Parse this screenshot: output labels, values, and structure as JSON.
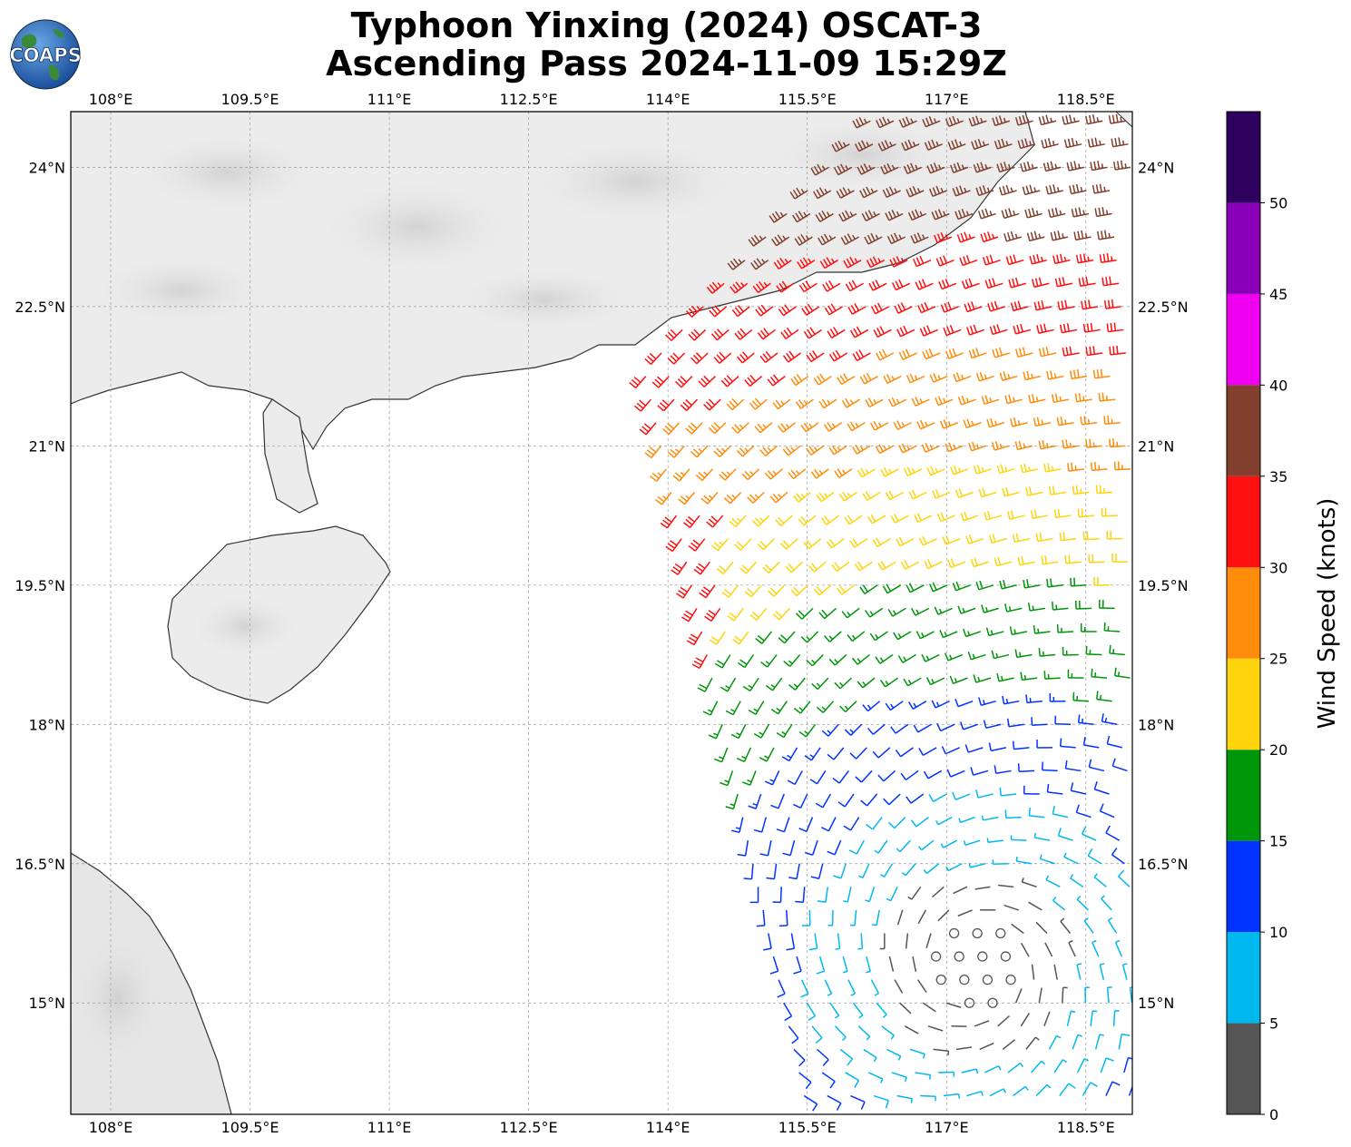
{
  "title": {
    "line1": "Typhoon Yinxing (2024) OSCAT-3",
    "line2": "Ascending Pass 2024-11-09 15:29Z"
  },
  "logo": {
    "text": "COAPS",
    "icon": "globe-logo"
  },
  "map": {
    "lon_ticks": [
      "108°E",
      "109.5°E",
      "111°E",
      "112.5°E",
      "114°E",
      "115.5°E",
      "117°E",
      "118.5°E"
    ],
    "lon_values": [
      108,
      109.5,
      111,
      112.5,
      114,
      115.5,
      117,
      118.5
    ],
    "lat_ticks": [
      "24°N",
      "22.5°N",
      "21°N",
      "19.5°N",
      "18°N",
      "16.5°N",
      "15°N"
    ],
    "lat_values": [
      24,
      22.5,
      21,
      19.5,
      18,
      16.5,
      15
    ],
    "lon_range": [
      107.57,
      119.0
    ],
    "lat_range": [
      13.8,
      24.6
    ],
    "grid": "dashed"
  },
  "colorbar": {
    "label": "Wind Speed (knots)",
    "ticks": [
      "0",
      "5",
      "10",
      "15",
      "20",
      "25",
      "30",
      "35",
      "40",
      "45",
      "50"
    ],
    "bins": [
      {
        "min": 0,
        "max": 5,
        "color": "#555555"
      },
      {
        "min": 5,
        "max": 10,
        "color": "#00b8f0"
      },
      {
        "min": 10,
        "max": 15,
        "color": "#0033ff"
      },
      {
        "min": 15,
        "max": 20,
        "color": "#00960a"
      },
      {
        "min": 20,
        "max": 25,
        "color": "#ffd40d"
      },
      {
        "min": 25,
        "max": 30,
        "color": "#ff8c0a"
      },
      {
        "min": 30,
        "max": 35,
        "color": "#ff1010"
      },
      {
        "min": 35,
        "max": 40,
        "color": "#823f2d"
      },
      {
        "min": 40,
        "max": 45,
        "color": "#f000f0"
      },
      {
        "min": 45,
        "max": 50,
        "color": "#8a00b8"
      },
      {
        "min": 50,
        "max": 55,
        "color": "#2d005e"
      }
    ]
  },
  "storm_center": {
    "lon": 117.3,
    "lat": 15.4
  }
}
